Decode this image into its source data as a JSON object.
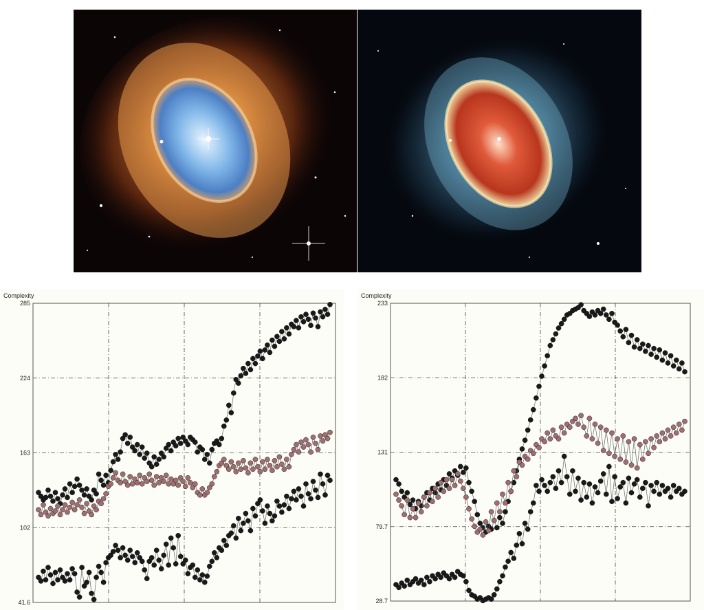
{
  "images": [
    {
      "name": "nebula-near-infrared"
    },
    {
      "name": "nebula-mid-infrared"
    }
  ],
  "chart_data": [
    {
      "type": "scatter",
      "ylabel": "Complexity",
      "ylim": [
        41.6,
        285
      ],
      "yticks": [
        "285",
        "224",
        "163",
        "102",
        "41.6"
      ],
      "grid": true,
      "series": [
        {
          "color": "#1a1a1a",
          "values": [
            131,
            128,
            125,
            127,
            133,
            128,
            124,
            131,
            126,
            122,
            129,
            134,
            127,
            138,
            131,
            136,
            142,
            137,
            133,
            129,
            134,
            128,
            125,
            133,
            130,
            146,
            141,
            137,
            145,
            139,
            149,
            156,
            162,
            158,
            164,
            175,
            178,
            171,
            176,
            168,
            165,
            170,
            162,
            168,
            159,
            163,
            155,
            152,
            160,
            154,
            158,
            163,
            160,
            167,
            170,
            165,
            172,
            169,
            175,
            171,
            176,
            173,
            170,
            176,
            174,
            172,
            164,
            168,
            166,
            158,
            162,
            155,
            166,
            171,
            173,
            170,
            175,
            185,
            190,
            202,
            196,
            212,
            223,
            220,
            226,
            232,
            228,
            236,
            231,
            240,
            236,
            242,
            246,
            240,
            247,
            251,
            245,
            255,
            250,
            258,
            254,
            262,
            256,
            265,
            260,
            268,
            266,
            271,
            265,
            274,
            270,
            276,
            272,
            267,
            277,
            273,
            266,
            278,
            274,
            280,
            276,
            284
          ]
        },
        {
          "color": "#9e6e70",
          "values": [
            117,
            113,
            121,
            115,
            112,
            118,
            114,
            116,
            120,
            113,
            117,
            121,
            115,
            119,
            123,
            117,
            121,
            125,
            119,
            114,
            122,
            116,
            113,
            120,
            117,
            124,
            122,
            126,
            130,
            136,
            138,
            143,
            147,
            141,
            139,
            146,
            140,
            137,
            144,
            138,
            142,
            139,
            145,
            138,
            143,
            140,
            146,
            141,
            137,
            144,
            139,
            143,
            140,
            145,
            138,
            142,
            138,
            141,
            137,
            143,
            140,
            136,
            143,
            139,
            135,
            138,
            131,
            129,
            134,
            129,
            131,
            135,
            138,
            144,
            148,
            153,
            155,
            158,
            153,
            150,
            156,
            152,
            148,
            155,
            150,
            157,
            151,
            147,
            155,
            150,
            158,
            152,
            148,
            156,
            150,
            158,
            153,
            149,
            157,
            152,
            160,
            154,
            150,
            158,
            152,
            162,
            166,
            170,
            164,
            172,
            168,
            174,
            170,
            164,
            176,
            171,
            166,
            177,
            173,
            178,
            175,
            180
          ]
        },
        {
          "color": "#1a1a1a",
          "values": [
            62,
            59,
            67,
            60,
            70,
            64,
            57,
            66,
            60,
            68,
            62,
            59,
            65,
            60,
            69,
            65,
            50,
            46,
            70,
            55,
            58,
            66,
            49,
            44,
            62,
            71,
            66,
            58,
            74,
            78,
            80,
            83,
            88,
            84,
            78,
            86,
            80,
            76,
            84,
            79,
            74,
            82,
            78,
            75,
            68,
            61,
            75,
            78,
            72,
            84,
            76,
            69,
            80,
            89,
            72,
            94,
            86,
            73,
            96,
            79,
            73,
            76,
            65,
            70,
            72,
            62,
            68,
            60,
            64,
            58,
            63,
            71,
            75,
            82,
            78,
            86,
            84,
            92,
            88,
            96,
            98,
            104,
            94,
            110,
            100,
            106,
            114,
            108,
            100,
            118,
            112,
            122,
            125,
            116,
            106,
            120,
            114,
            108,
            112,
            124,
            120,
            115,
            121,
            128,
            118,
            126,
            132,
            125,
            134,
            128,
            120,
            138,
            130,
            126,
            140,
            133,
            127,
            146,
            138,
            129,
            145,
            141
          ]
        }
      ]
    },
    {
      "type": "scatter",
      "ylabel": "Complexity",
      "ylim": [
        28.7,
        233
      ],
      "yticks": [
        "233",
        "182",
        "131",
        "79.7",
        "28.7"
      ],
      "grid": true,
      "series": [
        {
          "color": "#1a1a1a",
          "values": [
            112,
            109,
            104,
            100,
            103,
            95,
            98,
            92,
            97,
            94,
            100,
            103,
            98,
            106,
            103,
            109,
            105,
            112,
            108,
            116,
            113,
            118,
            115,
            121,
            117,
            120,
            110,
            104,
            97,
            88,
            82,
            79,
            76,
            80,
            78,
            84,
            79,
            86,
            82,
            90,
            97,
            104,
            110,
            118,
            126,
            133,
            139,
            146,
            153,
            160,
            168,
            176,
            183,
            190,
            197,
            204,
            208,
            212,
            216,
            219,
            222,
            225,
            226,
            228,
            229,
            230,
            232,
            228,
            226,
            224,
            227,
            225,
            228,
            226,
            229,
            225,
            222,
            226,
            220,
            218,
            214,
            210,
            215,
            206,
            211,
            203,
            208,
            202,
            205,
            200,
            204,
            198,
            202,
            196,
            201,
            194,
            199,
            192,
            197,
            190,
            194,
            188,
            192,
            186
          ]
        },
        {
          "color": "#9e6e70",
          "values": [
            102,
            98,
            94,
            88,
            98,
            86,
            92,
            86,
            96,
            90,
            100,
            94,
            103,
            97,
            106,
            100,
            110,
            104,
            112,
            106,
            112,
            108,
            116,
            111,
            106,
            100,
            92,
            85,
            80,
            76,
            78,
            74,
            83,
            77,
            90,
            84,
            96,
            90,
            102,
            96,
            110,
            104,
            118,
            114,
            124,
            122,
            128,
            126,
            132,
            130,
            136,
            134,
            140,
            138,
            144,
            140,
            146,
            142,
            140,
            148,
            144,
            150,
            148,
            152,
            154,
            150,
            156,
            148,
            142,
            154,
            140,
            150,
            137,
            148,
            132,
            146,
            130,
            144,
            128,
            140,
            126,
            142,
            124,
            138,
            122,
            140,
            120,
            136,
            126,
            138,
            130,
            140,
            134,
            142,
            138,
            144,
            140,
            146,
            142,
            148,
            144,
            150,
            146,
            152
          ]
        },
        {
          "color": "#1a1a1a",
          "values": [
            40,
            38,
            41,
            39,
            43,
            40,
            42,
            44,
            41,
            43,
            40,
            45,
            42,
            46,
            44,
            47,
            45,
            48,
            46,
            44,
            47,
            45,
            49,
            47,
            46,
            42,
            36,
            33,
            32,
            30,
            31,
            29,
            30,
            31,
            30,
            33,
            37,
            42,
            46,
            52,
            56,
            62,
            58,
            67,
            75,
            68,
            82,
            78,
            90,
            96,
            108,
            104,
            112,
            108,
            104,
            110,
            114,
            106,
            118,
            110,
            128,
            114,
            102,
            118,
            104,
            113,
            98,
            110,
            100,
            109,
            96,
            107,
            103,
            111,
            116,
            102,
            121,
            97,
            114,
            99,
            107,
            110,
            96,
            113,
            103,
            109,
            112,
            100,
            106,
            110,
            94,
            108,
            104,
            110,
            102,
            108,
            104,
            106,
            100,
            108,
            104,
            106,
            102,
            104
          ]
        }
      ]
    }
  ]
}
